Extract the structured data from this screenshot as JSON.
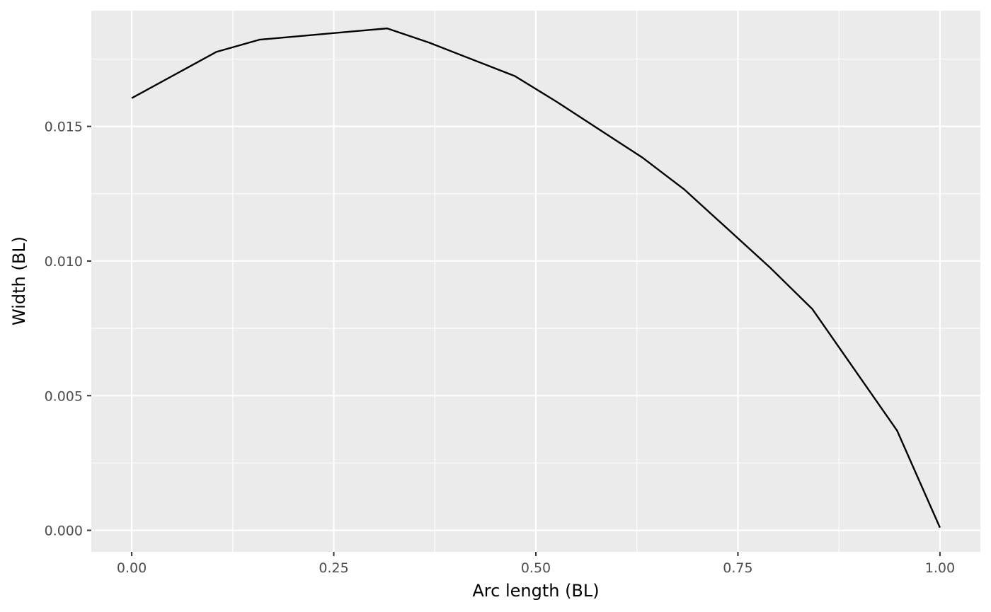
{
  "chart_data": {
    "type": "line",
    "title": "",
    "xlabel": "Arc length (BL)",
    "ylabel": "Width (BL)",
    "xlim": [
      -0.05,
      1.05
    ],
    "ylim": [
      -0.0008,
      0.0193
    ],
    "x_ticks": [
      0.0,
      0.25,
      0.5,
      0.75,
      1.0
    ],
    "x_tick_labels": [
      "0.00",
      "0.25",
      "0.50",
      "0.75",
      "1.00"
    ],
    "y_ticks": [
      0.0,
      0.005,
      0.01,
      0.015
    ],
    "y_tick_labels": [
      "0.000",
      "0.005",
      "0.010",
      "0.015"
    ],
    "grid": true,
    "legend": "none",
    "colors": {
      "panel_background": "#ebebeb",
      "gridline": "#ffffff",
      "line": "#000000",
      "tick_text": "#4d4d4d",
      "axis_title_text": "#000000"
    },
    "series": [
      {
        "x": [
          0.0,
          0.105,
          0.158,
          0.316,
          0.368,
          0.474,
          0.526,
          0.632,
          0.684,
          0.789,
          0.842,
          0.947,
          1.0
        ],
        "y": [
          0.01605,
          0.01777,
          0.01822,
          0.01864,
          0.01811,
          0.01687,
          0.01591,
          0.01384,
          0.01265,
          0.00978,
          0.00822,
          0.0037,
          0.0001
        ]
      }
    ]
  }
}
